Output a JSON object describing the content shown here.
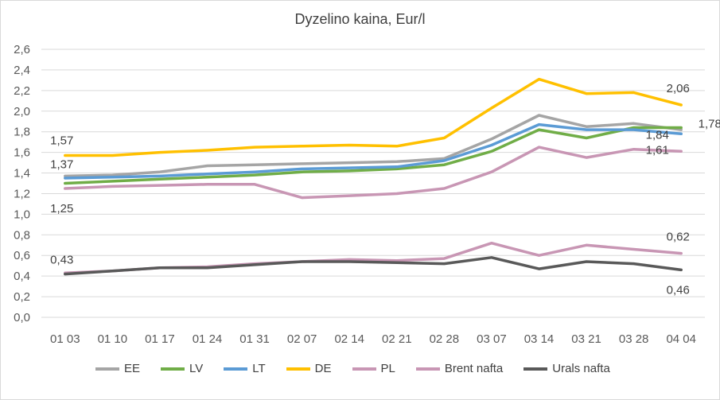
{
  "chart_data": {
    "type": "line",
    "title": "Dyzelino kaina, Eur/l",
    "xlabel": "",
    "ylabel": "",
    "ylim": [
      0,
      2.6
    ],
    "ytick_step": 0.2,
    "yticks": [
      "0,0",
      "0,2",
      "0,4",
      "0,6",
      "0,8",
      "1,0",
      "1,2",
      "1,4",
      "1,6",
      "1,8",
      "2,0",
      "2,2",
      "2,4",
      "2,6"
    ],
    "grid": true,
    "legend_position": "bottom",
    "categories": [
      "01 03",
      "01 10",
      "01 17",
      "01 24",
      "01 31",
      "02 07",
      "02 14",
      "02 21",
      "02 28",
      "03 07",
      "03 14",
      "03 21",
      "03 28",
      "04 04"
    ],
    "series": [
      {
        "name": "EE",
        "color": "#a5a5a5",
        "values": [
          1.37,
          1.38,
          1.41,
          1.47,
          1.48,
          1.49,
          1.5,
          1.51,
          1.54,
          1.73,
          1.96,
          1.85,
          1.88,
          1.82
        ]
      },
      {
        "name": "LV",
        "color": "#70ad47",
        "values": [
          1.3,
          1.32,
          1.34,
          1.36,
          1.38,
          1.41,
          1.42,
          1.44,
          1.48,
          1.61,
          1.82,
          1.74,
          1.84,
          1.84
        ]
      },
      {
        "name": "LT",
        "color": "#5b9bd5",
        "values": [
          1.35,
          1.36,
          1.37,
          1.39,
          1.41,
          1.44,
          1.45,
          1.46,
          1.52,
          1.67,
          1.87,
          1.82,
          1.82,
          1.78
        ]
      },
      {
        "name": "DE",
        "color": "#ffc000",
        "values": [
          1.57,
          1.57,
          1.6,
          1.62,
          1.65,
          1.66,
          1.67,
          1.66,
          1.74,
          2.03,
          2.31,
          2.17,
          2.18,
          2.06
        ]
      },
      {
        "name": "PL",
        "color": "#c896b4",
        "values": [
          1.25,
          1.27,
          1.28,
          1.29,
          1.29,
          1.16,
          1.18,
          1.2,
          1.25,
          1.41,
          1.65,
          1.55,
          1.63,
          1.61
        ]
      },
      {
        "name": "Brent nafta",
        "color": "#c896b4",
        "values": [
          0.43,
          0.45,
          0.48,
          0.49,
          0.52,
          0.54,
          0.56,
          0.55,
          0.57,
          0.72,
          0.6,
          0.7,
          0.66,
          0.62
        ]
      },
      {
        "name": "Urals nafta",
        "color": "#595959",
        "values": [
          0.42,
          0.45,
          0.48,
          0.48,
          0.51,
          0.54,
          0.54,
          0.53,
          0.52,
          0.58,
          0.47,
          0.54,
          0.52,
          0.46
        ]
      }
    ],
    "data_labels": [
      {
        "text": "1,57",
        "series": "DE",
        "index": 0
      },
      {
        "text": "1,37",
        "series": "EE",
        "index": 0
      },
      {
        "text": "1,25",
        "series": "PL",
        "index": 0
      },
      {
        "text": "0,43",
        "series": "Brent nafta",
        "index": 0
      },
      {
        "text": "2,06",
        "series": "DE",
        "index": 13
      },
      {
        "text": "1,84",
        "series": "LV",
        "index": 13
      },
      {
        "text": "1,78",
        "series": "LT",
        "index": 13
      },
      {
        "text": "1,61",
        "series": "PL",
        "index": 13
      },
      {
        "text": "0,62",
        "series": "Brent nafta",
        "index": 13
      },
      {
        "text": "0,46",
        "series": "Urals nafta",
        "index": 13
      }
    ]
  }
}
